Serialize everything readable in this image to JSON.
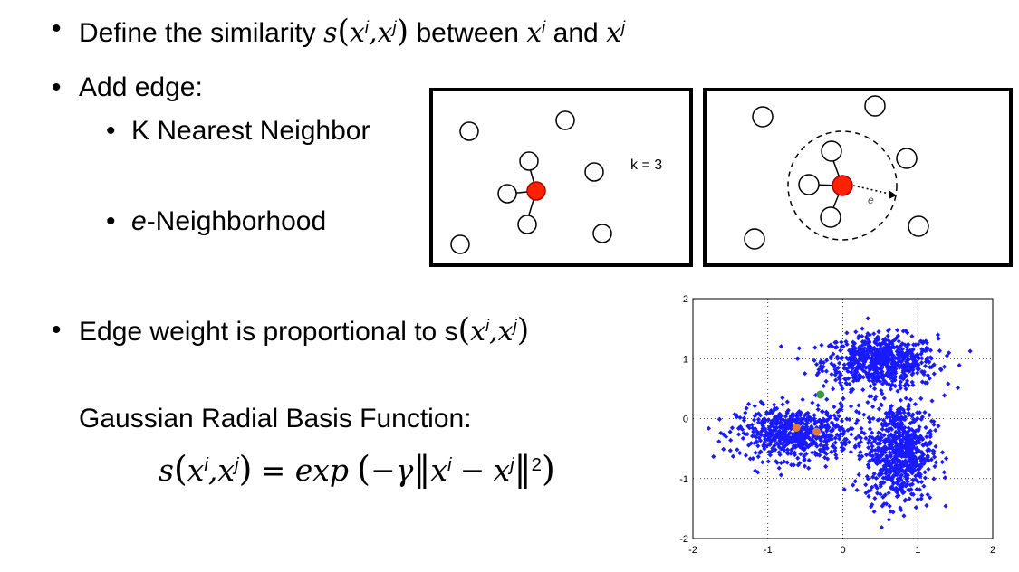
{
  "bullets": {
    "define": {
      "prefix": "Define the similarity",
      "s": "s",
      "xi": "x",
      "i": "i",
      "comma": ",",
      "xj": "x",
      "j": "j",
      "between": "between",
      "and": "and"
    },
    "add_edge": "Add edge:",
    "knn": "K Nearest Neighbor",
    "eps_e": "e",
    "eps_rest": "-Neighborhood",
    "edge_weight": "Edge weight is proportional to s"
  },
  "gaussian": {
    "title": "Gaussian Radial Basis Function:",
    "formula_eq": "= exp",
    "gamma": "−γ",
    "minus": "−",
    "exp2": "2"
  },
  "knn_panel": {
    "k_label": "k = 3"
  },
  "eps_panel": {
    "radius_label": "e"
  },
  "scatter": {
    "x_ticks": [
      "-2",
      "-1",
      "0",
      "1",
      "2"
    ],
    "y_ticks": [
      "2",
      "1",
      "0",
      "-1",
      "-2"
    ],
    "point_color": "#1a1aff",
    "highlight_colors": {
      "green": "#3c9a3c",
      "orange": "#e07a3a"
    }
  },
  "chart_data": {
    "type": "scatter",
    "xlim": [
      -2,
      2
    ],
    "ylim": [
      -2,
      2
    ],
    "x_ticks": [
      -2,
      -1,
      0,
      1,
      2
    ],
    "y_ticks": [
      -2,
      -1,
      0,
      1,
      2
    ],
    "grid": true,
    "clusters": [
      {
        "center": [
          0.5,
          0.95
        ],
        "spread": [
          0.38,
          0.22
        ],
        "n": 700
      },
      {
        "center": [
          -0.65,
          -0.25
        ],
        "spread": [
          0.38,
          0.22
        ],
        "n": 650
      },
      {
        "center": [
          0.75,
          -0.55
        ],
        "spread": [
          0.22,
          0.42
        ],
        "n": 700
      }
    ],
    "highlight_points": [
      {
        "x": -0.3,
        "y": 0.4,
        "color": "green"
      },
      {
        "x": -0.62,
        "y": -0.15,
        "color": "orange"
      },
      {
        "x": -0.35,
        "y": -0.22,
        "color": "orange"
      }
    ]
  }
}
